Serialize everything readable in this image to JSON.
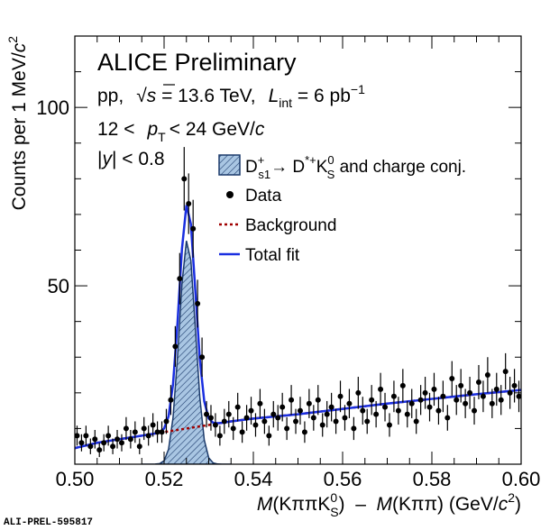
{
  "chart_data": {
    "type": "line",
    "title": "ALICE Preliminary",
    "annotations": {
      "energy": [
        "pp,",
        "s",
        " = 13.6 TeV,",
        "L",
        "int",
        " = 6 pb",
        "−1"
      ],
      "pt": [
        "12 <",
        "p",
        "T",
        "< 24 GeV/",
        "c"
      ],
      "rapidity": [
        "|",
        "y",
        "| < 0.8"
      ]
    },
    "x_label": [
      "M",
      "(KππK",
      "0",
      "S",
      ")  –  ",
      "M",
      "(Kππ) (GeV/",
      "c",
      "2",
      ")"
    ],
    "y_label": [
      "Counts per 1 MeV/",
      "c",
      "2"
    ],
    "xlim": [
      0.5,
      0.6
    ],
    "ylim": [
      0,
      120
    ],
    "xticks": [
      {
        "value": 0.5,
        "label": "0.50"
      },
      0.52,
      0.54,
      0.56,
      0.58,
      {
        "value": 0.6,
        "label": "0.60"
      }
    ],
    "xticks_minor": [
      0.505,
      0.51,
      0.515,
      0.525,
      0.53,
      0.535,
      0.545,
      0.55,
      0.555,
      0.565,
      0.57,
      0.575,
      0.585,
      0.59,
      0.595
    ],
    "yticks": [
      50,
      100
    ],
    "yticks_minor": [
      10,
      20,
      30,
      40,
      60,
      70,
      80,
      90,
      110
    ],
    "series": [
      {
        "type": "area",
        "name": [
          "D",
          "+",
          "s1",
          "→ D",
          "*+",
          "K",
          "0",
          "S",
          " and charge conj."
        ],
        "color": "#1b3a6b",
        "fill": "#a9c6e3",
        "x": [
          0.515,
          0.517,
          0.518,
          0.519,
          0.52,
          0.521,
          0.522,
          0.523,
          0.524,
          0.525,
          0.526,
          0.527,
          0.528,
          0.529,
          0.53,
          0.531,
          0.532,
          0.533,
          0.535
        ],
        "values": [
          0,
          0,
          0.02,
          0.17,
          0.97,
          4.2,
          13.0,
          29.9,
          50.5,
          62.6,
          57.1,
          38.2,
          18.8,
          6.8,
          1.8,
          0.35,
          0.05,
          0,
          0
        ]
      },
      {
        "type": "errorbar",
        "name": "Data",
        "color": "#000000",
        "x": [
          0.5005,
          0.5015,
          0.5025,
          0.5035,
          0.5045,
          0.5055,
          0.5065,
          0.5075,
          0.5085,
          0.5095,
          0.5105,
          0.5115,
          0.5125,
          0.5135,
          0.5145,
          0.5155,
          0.5165,
          0.5175,
          0.5185,
          0.5195,
          0.5205,
          0.5215,
          0.5225,
          0.5235,
          0.5245,
          0.5255,
          0.5265,
          0.5275,
          0.5285,
          0.5295,
          0.5305,
          0.5315,
          0.5325,
          0.5335,
          0.5345,
          0.5355,
          0.5365,
          0.5375,
          0.5385,
          0.5395,
          0.5405,
          0.5415,
          0.5425,
          0.5435,
          0.5445,
          0.5455,
          0.5465,
          0.5475,
          0.5485,
          0.5495,
          0.5505,
          0.5515,
          0.5525,
          0.5535,
          0.5545,
          0.5555,
          0.5565,
          0.5575,
          0.5585,
          0.5595,
          0.5605,
          0.5615,
          0.5625,
          0.5635,
          0.5645,
          0.5655,
          0.5665,
          0.5675,
          0.5685,
          0.5695,
          0.5705,
          0.5715,
          0.5725,
          0.5735,
          0.5745,
          0.5755,
          0.5765,
          0.5775,
          0.5785,
          0.5795,
          0.5805,
          0.5815,
          0.5825,
          0.5835,
          0.5845,
          0.5855,
          0.5865,
          0.5875,
          0.5885,
          0.5895,
          0.5905,
          0.5915,
          0.5925,
          0.5935,
          0.5945,
          0.5955,
          0.5965,
          0.5975,
          0.5985,
          0.5995
        ],
        "values": [
          8,
          6,
          8,
          5,
          7,
          4,
          6,
          8,
          5,
          7,
          6,
          10,
          7,
          9,
          5,
          10,
          8,
          11,
          9,
          9,
          12,
          18,
          33,
          52,
          80,
          73,
          66,
          45,
          30,
          14,
          13,
          11,
          8,
          12,
          14,
          10,
          16,
          9,
          13,
          15,
          11,
          17,
          12,
          8,
          14,
          13,
          16,
          10,
          18,
          12,
          15,
          9,
          17,
          13,
          18,
          11,
          14,
          16,
          12,
          19,
          13,
          17,
          10,
          20,
          15,
          12,
          18,
          14,
          21,
          16,
          11,
          19,
          15,
          22,
          14,
          17,
          12,
          18,
          20,
          16,
          21,
          15,
          19,
          13,
          24,
          18,
          22,
          17,
          20,
          15,
          23,
          19,
          25,
          17,
          21,
          18,
          26,
          20,
          22,
          19
        ],
        "errors": [
          2.8,
          2.4,
          2.8,
          2.2,
          2.6,
          2.0,
          2.4,
          2.8,
          2.2,
          2.6,
          2.4,
          3.2,
          2.6,
          3.0,
          2.2,
          3.2,
          2.8,
          3.3,
          3.0,
          3.0,
          3.5,
          4.2,
          5.7,
          7.2,
          8.9,
          8.5,
          8.1,
          6.7,
          5.5,
          3.7,
          3.6,
          3.3,
          2.8,
          3.5,
          3.7,
          3.2,
          4.0,
          3.0,
          3.6,
          3.9,
          3.3,
          4.1,
          3.5,
          2.8,
          3.7,
          3.6,
          4.0,
          3.2,
          4.2,
          3.5,
          3.9,
          3.0,
          4.1,
          3.6,
          4.2,
          3.3,
          3.7,
          4.0,
          3.5,
          4.4,
          3.6,
          4.1,
          3.2,
          4.5,
          3.9,
          3.5,
          4.2,
          3.7,
          4.6,
          4.0,
          3.3,
          4.4,
          3.9,
          4.7,
          3.7,
          4.1,
          3.5,
          4.2,
          4.5,
          4.0,
          4.6,
          3.9,
          4.4,
          3.6,
          4.9,
          4.2,
          4.7,
          4.1,
          4.5,
          3.9,
          4.8,
          4.4,
          5.0,
          4.1,
          4.6,
          4.2,
          5.1,
          4.5,
          4.7,
          4.4
        ]
      },
      {
        "type": "line",
        "name": "Background",
        "color": "#a00000",
        "dashed": true,
        "x": [
          0.5,
          0.505,
          0.51,
          0.515,
          0.52,
          0.525,
          0.53,
          0.535,
          0.54,
          0.55,
          0.56,
          0.57,
          0.58,
          0.59,
          0.6
        ],
        "values": [
          4.5,
          6,
          7,
          8,
          9,
          10,
          11,
          12,
          12.8,
          14,
          15.5,
          17,
          18.3,
          19.6,
          20.8
        ]
      },
      {
        "type": "line",
        "name": "Total fit",
        "color": "#1a2fe0",
        "dashed": false,
        "x": [
          0.5,
          0.505,
          0.51,
          0.515,
          0.517,
          0.518,
          0.519,
          0.52,
          0.521,
          0.522,
          0.523,
          0.524,
          0.525,
          0.526,
          0.527,
          0.528,
          0.529,
          0.53,
          0.531,
          0.532,
          0.533,
          0.535,
          0.54,
          0.55,
          0.56,
          0.57,
          0.58,
          0.59,
          0.6
        ],
        "values": [
          4.5,
          6,
          7,
          8,
          8.4,
          8.6,
          9.0,
          10.0,
          13.4,
          22.4,
          39.5,
          60.3,
          72.6,
          67.3,
          48.6,
          29.4,
          17.6,
          12.8,
          11.6,
          11.5,
          11.6,
          12,
          12.8,
          14,
          15.5,
          17,
          18.3,
          19.6,
          20.8
        ]
      }
    ]
  },
  "footer": "ALI-PREL-595817"
}
